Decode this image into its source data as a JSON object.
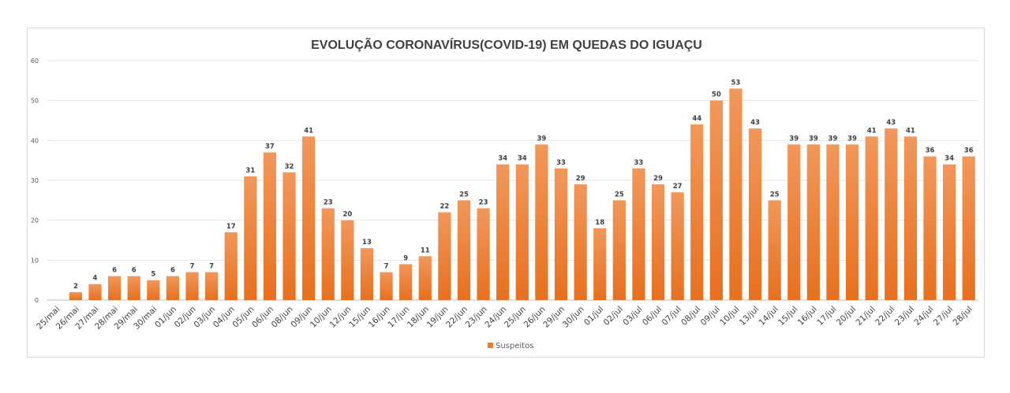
{
  "chart_data": {
    "type": "bar",
    "title": "EVOLUÇÃO CORONAVÍRUS(COVID-19) EM QUEDAS DO IGUAÇU",
    "xlabel": "",
    "ylabel": "",
    "ylim": [
      0,
      60
    ],
    "yticks": [
      0,
      10,
      20,
      30,
      40,
      50,
      60
    ],
    "grid": true,
    "legend_position": "bottom",
    "categories": [
      "25/mai",
      "26/mai",
      "27/mai",
      "28/mai",
      "29/mai",
      "30/mai",
      "01/jun",
      "02/jun",
      "03/jun",
      "04/jun",
      "05/jun",
      "06/jun",
      "08/jun",
      "09/jun",
      "10/jun",
      "12/jun",
      "15/jun",
      "16/jun",
      "17/jun",
      "18/jun",
      "19/jun",
      "22/jun",
      "23/jun",
      "24/jun",
      "25/jun",
      "26/jun",
      "29/jun",
      "30/jun",
      "01/jul",
      "02/jul",
      "03/jul",
      "06/jul",
      "07/jul",
      "08/jul",
      "09/jul",
      "10/jul",
      "13/jul",
      "14/jul",
      "15/jul",
      "16/jul",
      "17/jul",
      "20/jul",
      "21/jul",
      "22/jul",
      "23/jul",
      "24/jul",
      "27/jul",
      "28/jul"
    ],
    "series": [
      {
        "name": "Suspeitos",
        "color": "#ed7d31",
        "values": [
          0,
          2,
          4,
          6,
          6,
          5,
          6,
          7,
          7,
          17,
          31,
          37,
          32,
          41,
          23,
          20,
          13,
          7,
          9,
          11,
          22,
          25,
          23,
          34,
          34,
          39,
          33,
          29,
          18,
          25,
          33,
          29,
          27,
          44,
          50,
          53,
          43,
          25,
          39,
          39,
          39,
          39,
          41,
          43,
          41,
          36,
          34,
          36
        ],
        "labels": [
          "",
          "2",
          "4",
          "6",
          "6",
          "5",
          "6",
          "7",
          "7",
          "17",
          "31",
          "37",
          "32",
          "41",
          "23",
          "20",
          "13",
          "7",
          "9",
          "11",
          "22",
          "25",
          "23",
          "34",
          "34",
          "39",
          "33",
          "29",
          "18",
          "25",
          "33",
          "29",
          "27",
          "44",
          "50",
          "53",
          "43",
          "25",
          "39",
          "39",
          "39",
          "39",
          "41",
          "43",
          "41",
          "36",
          "34",
          "36"
        ]
      }
    ]
  }
}
